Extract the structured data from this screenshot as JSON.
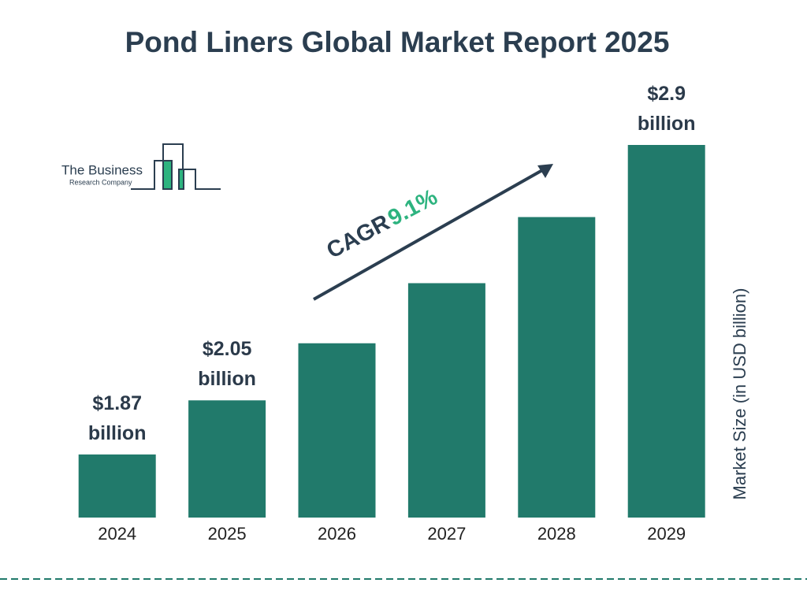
{
  "chart_data": {
    "type": "bar",
    "title": "Pond Liners Global Market Report 2025",
    "categories": [
      "2024",
      "2025",
      "2026",
      "2027",
      "2028",
      "2029"
    ],
    "values": [
      1.87,
      2.05,
      2.24,
      2.44,
      2.66,
      2.9
    ],
    "value_labels": [
      "$1.87 billion",
      "$2.05 billion",
      null,
      null,
      null,
      "$2.9 billion"
    ],
    "color": "#217a6b",
    "ylim": [
      1.66,
      2.9
    ],
    "y_axis_label": "Market Size (in USD billion)",
    "annotation": {
      "cagr_label": "CAGR",
      "cagr_value": "9.1%"
    },
    "logo": {
      "line1": "The Business",
      "line2": "Research Company"
    }
  }
}
